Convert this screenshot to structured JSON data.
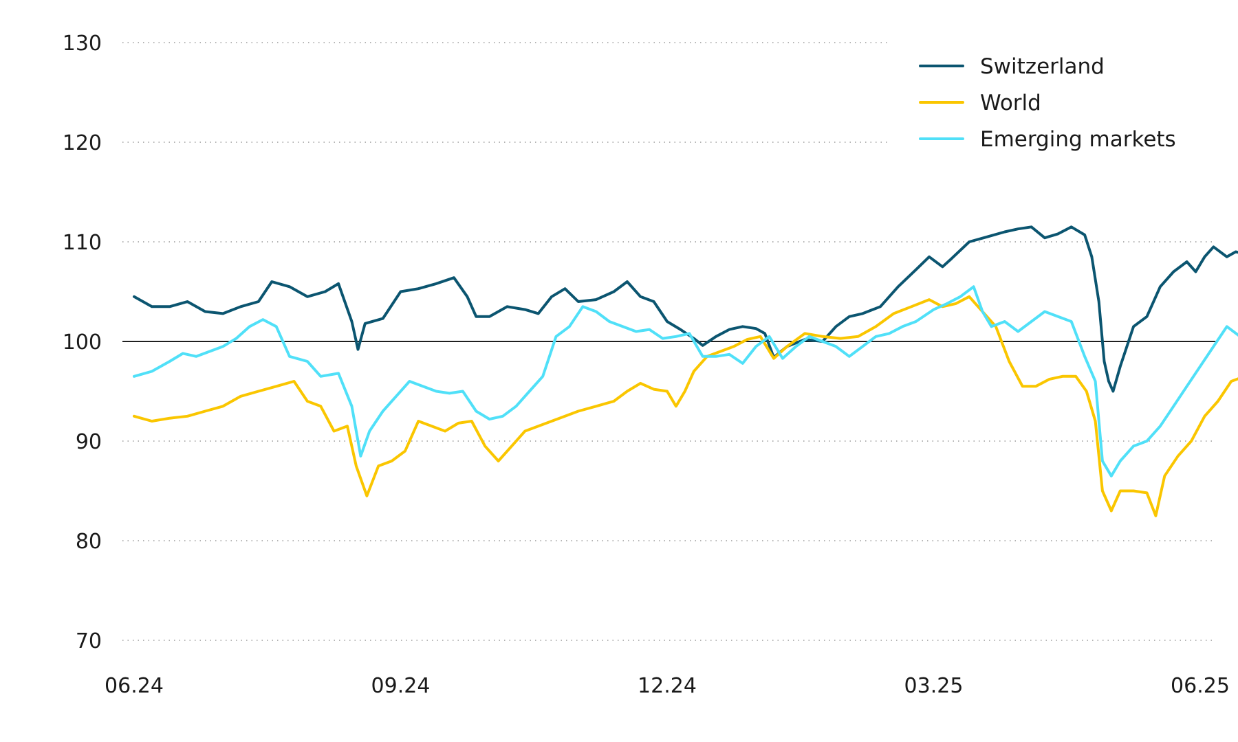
{
  "chart_data": {
    "type": "line",
    "title": "",
    "xlabel": "",
    "ylabel": "",
    "ylim": [
      70,
      130
    ],
    "yticks": [
      70,
      80,
      90,
      100,
      110,
      120,
      130
    ],
    "xticks": [
      {
        "label": "06.24",
        "t": 0
      },
      {
        "label": "09.24",
        "t": 3
      },
      {
        "label": "12.24",
        "t": 6
      },
      {
        "label": "03.25",
        "t": 9
      },
      {
        "label": "06.25",
        "t": 12
      }
    ],
    "grid": "horizontal dotted",
    "reference_line": 100,
    "legend_position": "top-right",
    "series": [
      {
        "name": "Switzerland",
        "color": "#0b5570",
        "points": [
          [
            0,
            104.5
          ],
          [
            0.2,
            103.5
          ],
          [
            0.4,
            103.5
          ],
          [
            0.6,
            104
          ],
          [
            0.8,
            103
          ],
          [
            1,
            102.8
          ],
          [
            1.2,
            103.5
          ],
          [
            1.4,
            104
          ],
          [
            1.55,
            106
          ],
          [
            1.75,
            105.5
          ],
          [
            1.95,
            104.5
          ],
          [
            2.15,
            105
          ],
          [
            2.3,
            105.8
          ],
          [
            2.45,
            102
          ],
          [
            2.52,
            99.2
          ],
          [
            2.6,
            101.8
          ],
          [
            2.8,
            102.3
          ],
          [
            3.0,
            105
          ],
          [
            3.2,
            105.3
          ],
          [
            3.4,
            105.8
          ],
          [
            3.6,
            106.4
          ],
          [
            3.75,
            104.5
          ],
          [
            3.85,
            102.5
          ],
          [
            4.0,
            102.5
          ],
          [
            4.2,
            103.5
          ],
          [
            4.4,
            103.2
          ],
          [
            4.55,
            102.8
          ],
          [
            4.7,
            104.5
          ],
          [
            4.85,
            105.3
          ],
          [
            5.0,
            104
          ],
          [
            5.2,
            104.2
          ],
          [
            5.4,
            105
          ],
          [
            5.55,
            106
          ],
          [
            5.7,
            104.5
          ],
          [
            5.85,
            104
          ],
          [
            6.0,
            102
          ],
          [
            6.15,
            101.2
          ],
          [
            6.3,
            100.3
          ],
          [
            6.4,
            99.6
          ],
          [
            6.55,
            100.5
          ],
          [
            6.7,
            101.2
          ],
          [
            6.85,
            101.5
          ],
          [
            7.0,
            101.3
          ],
          [
            7.1,
            100.8
          ],
          [
            7.2,
            98.4
          ],
          [
            7.35,
            99.5
          ],
          [
            7.55,
            100.2
          ],
          [
            7.75,
            100
          ],
          [
            7.9,
            101.5
          ],
          [
            8.05,
            102.5
          ],
          [
            8.2,
            102.8
          ],
          [
            8.4,
            103.5
          ],
          [
            8.6,
            105.5
          ],
          [
            8.8,
            107.2
          ],
          [
            8.95,
            108.5
          ],
          [
            9.1,
            107.5
          ],
          [
            9.2,
            108.3
          ],
          [
            9.4,
            110
          ],
          [
            9.6,
            110.5
          ],
          [
            9.8,
            111
          ],
          [
            9.95,
            111.3
          ],
          [
            10.1,
            111.5
          ],
          [
            10.25,
            110.4
          ],
          [
            10.4,
            110.8
          ],
          [
            10.55,
            111.5
          ],
          [
            10.7,
            110.7
          ],
          [
            10.78,
            108.5
          ],
          [
            10.86,
            104
          ],
          [
            10.92,
            98
          ],
          [
            10.97,
            96
          ],
          [
            11.02,
            95
          ],
          [
            11.1,
            97.5
          ],
          [
            11.25,
            101.5
          ],
          [
            11.4,
            102.5
          ],
          [
            11.55,
            105.5
          ],
          [
            11.7,
            107
          ],
          [
            11.85,
            108
          ],
          [
            11.95,
            107
          ],
          [
            12.05,
            108.5
          ],
          [
            12.15,
            109.5
          ],
          [
            12.3,
            108.5
          ],
          [
            12.4,
            109
          ],
          [
            12.5,
            108.8
          ],
          [
            12.6,
            109.5
          ],
          [
            12.75,
            110
          ],
          [
            12.9,
            110
          ],
          [
            13.0,
            109.8
          ]
        ]
      },
      {
        "name": "World",
        "color": "#fac600",
        "points": [
          [
            0,
            92.5
          ],
          [
            0.2,
            92
          ],
          [
            0.4,
            92.3
          ],
          [
            0.6,
            92.5
          ],
          [
            0.8,
            93
          ],
          [
            1,
            93.5
          ],
          [
            1.2,
            94.5
          ],
          [
            1.4,
            95
          ],
          [
            1.6,
            95.5
          ],
          [
            1.8,
            96
          ],
          [
            1.95,
            94
          ],
          [
            2.1,
            93.5
          ],
          [
            2.25,
            91
          ],
          [
            2.4,
            91.5
          ],
          [
            2.5,
            87.5
          ],
          [
            2.62,
            84.5
          ],
          [
            2.75,
            87.5
          ],
          [
            2.9,
            88
          ],
          [
            3.05,
            89
          ],
          [
            3.2,
            92
          ],
          [
            3.35,
            91.5
          ],
          [
            3.5,
            91
          ],
          [
            3.65,
            91.8
          ],
          [
            3.8,
            92
          ],
          [
            3.95,
            89.5
          ],
          [
            4.1,
            88
          ],
          [
            4.25,
            89.5
          ],
          [
            4.4,
            91
          ],
          [
            4.55,
            91.5
          ],
          [
            4.7,
            92
          ],
          [
            4.85,
            92.5
          ],
          [
            5.0,
            93
          ],
          [
            5.2,
            93.5
          ],
          [
            5.4,
            94
          ],
          [
            5.55,
            95
          ],
          [
            5.7,
            95.8
          ],
          [
            5.85,
            95.2
          ],
          [
            6.0,
            95
          ],
          [
            6.1,
            93.5
          ],
          [
            6.2,
            95
          ],
          [
            6.3,
            97
          ],
          [
            6.45,
            98.5
          ],
          [
            6.6,
            99
          ],
          [
            6.75,
            99.5
          ],
          [
            6.9,
            100.2
          ],
          [
            7.05,
            100.5
          ],
          [
            7.2,
            98.3
          ],
          [
            7.35,
            99.5
          ],
          [
            7.55,
            100.8
          ],
          [
            7.75,
            100.5
          ],
          [
            7.95,
            100.3
          ],
          [
            8.15,
            100.5
          ],
          [
            8.35,
            101.5
          ],
          [
            8.55,
            102.8
          ],
          [
            8.75,
            103.5
          ],
          [
            8.95,
            104.2
          ],
          [
            9.1,
            103.5
          ],
          [
            9.25,
            103.8
          ],
          [
            9.4,
            104.5
          ],
          [
            9.55,
            103
          ],
          [
            9.7,
            101.5
          ],
          [
            9.85,
            98
          ],
          [
            10.0,
            95.5
          ],
          [
            10.15,
            95.5
          ],
          [
            10.3,
            96.2
          ],
          [
            10.45,
            96.5
          ],
          [
            10.6,
            96.5
          ],
          [
            10.72,
            95
          ],
          [
            10.82,
            92
          ],
          [
            10.9,
            85
          ],
          [
            11.0,
            83
          ],
          [
            11.1,
            85
          ],
          [
            11.25,
            85
          ],
          [
            11.4,
            84.8
          ],
          [
            11.5,
            82.5
          ],
          [
            11.6,
            86.5
          ],
          [
            11.75,
            88.5
          ],
          [
            11.9,
            90
          ],
          [
            12.05,
            92.5
          ],
          [
            12.2,
            94
          ],
          [
            12.35,
            96
          ],
          [
            12.5,
            96.5
          ],
          [
            12.6,
            95
          ],
          [
            12.7,
            93.5
          ],
          [
            12.85,
            95.2
          ],
          [
            13.0,
            96
          ]
        ]
      },
      {
        "name": "Emerging markets",
        "color": "#50e0f8",
        "points": [
          [
            0,
            96.5
          ],
          [
            0.2,
            97
          ],
          [
            0.4,
            98
          ],
          [
            0.55,
            98.8
          ],
          [
            0.7,
            98.5
          ],
          [
            0.85,
            99
          ],
          [
            1.0,
            99.5
          ],
          [
            1.15,
            100.3
          ],
          [
            1.3,
            101.5
          ],
          [
            1.45,
            102.2
          ],
          [
            1.6,
            101.5
          ],
          [
            1.75,
            98.5
          ],
          [
            1.95,
            98
          ],
          [
            2.1,
            96.5
          ],
          [
            2.3,
            96.8
          ],
          [
            2.45,
            93.5
          ],
          [
            2.55,
            88.5
          ],
          [
            2.65,
            91
          ],
          [
            2.8,
            93
          ],
          [
            2.95,
            94.5
          ],
          [
            3.1,
            96
          ],
          [
            3.25,
            95.5
          ],
          [
            3.4,
            95
          ],
          [
            3.55,
            94.8
          ],
          [
            3.7,
            95
          ],
          [
            3.85,
            93
          ],
          [
            4.0,
            92.2
          ],
          [
            4.15,
            92.5
          ],
          [
            4.3,
            93.5
          ],
          [
            4.45,
            95
          ],
          [
            4.6,
            96.5
          ],
          [
            4.75,
            100.5
          ],
          [
            4.9,
            101.5
          ],
          [
            5.05,
            103.5
          ],
          [
            5.2,
            103
          ],
          [
            5.35,
            102
          ],
          [
            5.5,
            101.5
          ],
          [
            5.65,
            101
          ],
          [
            5.8,
            101.2
          ],
          [
            5.95,
            100.3
          ],
          [
            6.1,
            100.5
          ],
          [
            6.25,
            100.8
          ],
          [
            6.4,
            98.5
          ],
          [
            6.55,
            98.5
          ],
          [
            6.7,
            98.7
          ],
          [
            6.85,
            97.8
          ],
          [
            7.0,
            99.5
          ],
          [
            7.15,
            100.5
          ],
          [
            7.3,
            98.3
          ],
          [
            7.45,
            99.5
          ],
          [
            7.6,
            100.5
          ],
          [
            7.75,
            100
          ],
          [
            7.9,
            99.5
          ],
          [
            8.05,
            98.5
          ],
          [
            8.2,
            99.5
          ],
          [
            8.35,
            100.5
          ],
          [
            8.5,
            100.8
          ],
          [
            8.65,
            101.5
          ],
          [
            8.8,
            102
          ],
          [
            9.0,
            103.2
          ],
          [
            9.15,
            103.8
          ],
          [
            9.3,
            104.5
          ],
          [
            9.45,
            105.5
          ],
          [
            9.55,
            103
          ],
          [
            9.65,
            101.5
          ],
          [
            9.8,
            102
          ],
          [
            9.95,
            101
          ],
          [
            10.1,
            102
          ],
          [
            10.25,
            103
          ],
          [
            10.4,
            102.5
          ],
          [
            10.55,
            102
          ],
          [
            10.7,
            98.5
          ],
          [
            10.82,
            96
          ],
          [
            10.9,
            88
          ],
          [
            11.0,
            86.5
          ],
          [
            11.1,
            88
          ],
          [
            11.25,
            89.5
          ],
          [
            11.4,
            90
          ],
          [
            11.55,
            91.5
          ],
          [
            11.7,
            93.5
          ],
          [
            11.85,
            95.5
          ],
          [
            12.0,
            97.5
          ],
          [
            12.15,
            99.5
          ],
          [
            12.3,
            101.5
          ],
          [
            12.45,
            100.5
          ],
          [
            12.6,
            99.5
          ],
          [
            12.75,
            99.8
          ],
          [
            12.85,
            100.8
          ],
          [
            12.95,
            102.5
          ],
          [
            13.0,
            101.5
          ]
        ]
      }
    ]
  }
}
